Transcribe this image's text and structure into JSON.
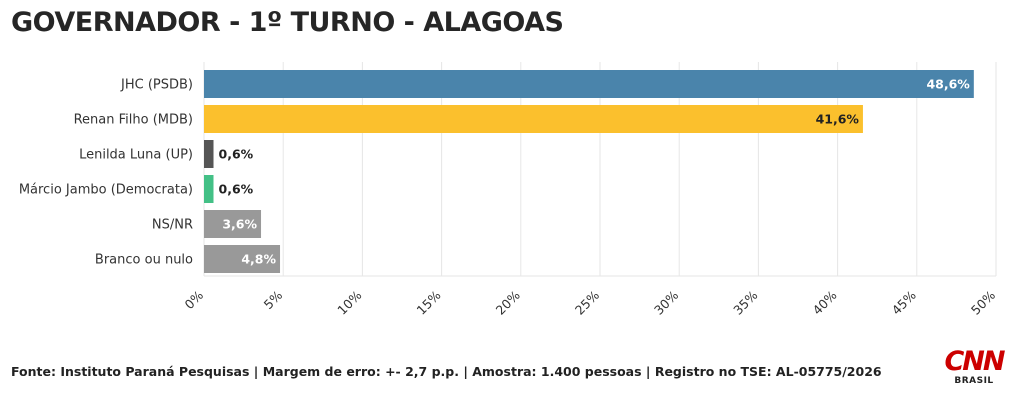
{
  "title": "GOVERNADOR - 1º TURNO - ALAGOAS",
  "footer": "Fonte: Instituto Paraná Pesquisas | Margem de erro: +- 2,7 p.p. | Amostra: 1.400 pessoas | Registro no TSE: AL-05775/2026",
  "logo": {
    "mark": "CNN",
    "sub": "BRASIL",
    "color": "#cc0000"
  },
  "chart_data": {
    "type": "bar",
    "orientation": "horizontal",
    "categories": [
      "JHC (PSDB)",
      "Renan Filho (MDB)",
      "Lenilda Luna (UP)",
      "Márcio Jambo (Democrata)",
      "NS/NR",
      "Branco ou nulo"
    ],
    "values": [
      48.6,
      41.6,
      0.6,
      0.6,
      3.6,
      4.8
    ],
    "value_labels": [
      "48,6%",
      "41,6%",
      "0,6%",
      "0,6%",
      "3,6%",
      "4,8%"
    ],
    "colors": [
      "#4a84ab",
      "#fbc02d",
      "#555555",
      "#43c086",
      "#999999",
      "#999999"
    ],
    "label_colors": [
      "#ffffff",
      "#222222",
      "#222222",
      "#222222",
      "#ffffff",
      "#ffffff"
    ],
    "xlim": [
      0,
      50
    ],
    "x_ticks": [
      0,
      5,
      10,
      15,
      20,
      25,
      30,
      35,
      40,
      45,
      50
    ],
    "x_tick_labels": [
      "0%",
      "5%",
      "10%",
      "15%",
      "20%",
      "25%",
      "30%",
      "35%",
      "40%",
      "45%",
      "50%"
    ],
    "grid": true,
    "legend": "none"
  }
}
